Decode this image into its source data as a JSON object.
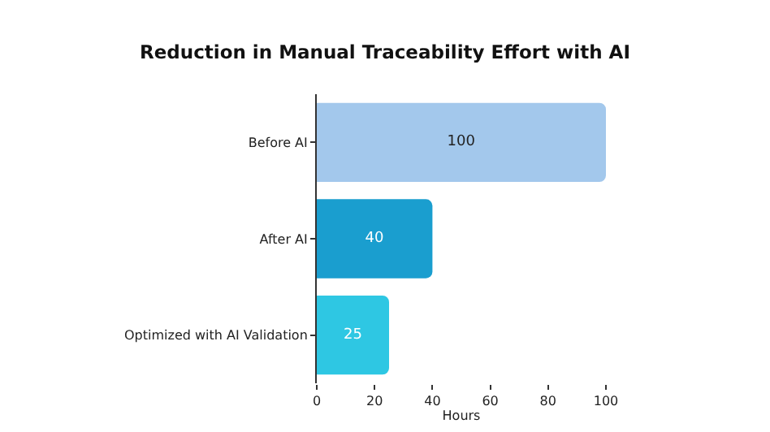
{
  "chart_data": {
    "type": "bar",
    "orientation": "horizontal",
    "title": "Reduction in Manual Traceability Effort with AI",
    "xlabel": "Hours",
    "categories": [
      "Before AI",
      "After AI",
      "Optimized with AI Validation"
    ],
    "values": [
      100,
      40,
      25
    ],
    "colors": [
      "#a3c8ec",
      "#1a9ecf",
      "#2ec7e3"
    ],
    "xlim": [
      0,
      100
    ],
    "xticks": [
      0,
      20,
      40,
      60,
      80,
      100
    ],
    "grid": false,
    "data_labels": true
  }
}
